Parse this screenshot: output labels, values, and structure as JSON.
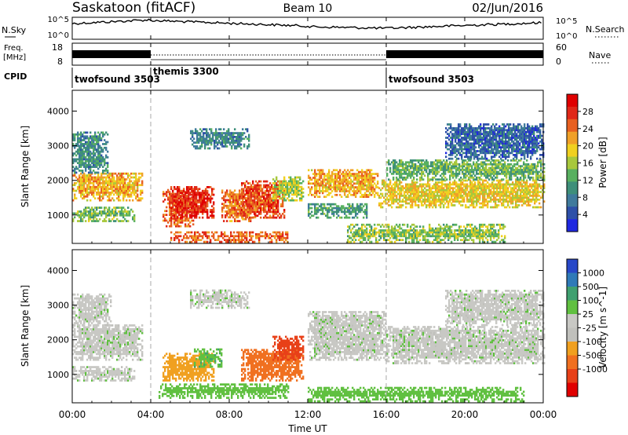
{
  "header": {
    "station": "Saskatoon (fitACF)",
    "beam": "Beam 10",
    "date": "02/Jun/2016"
  },
  "nsky_panel": {
    "left_label": "N.Sky",
    "right_label": "N.Search",
    "left_ticks": [
      "10^5",
      "10^0"
    ],
    "right_ticks": [
      "10^5",
      "10^0"
    ]
  },
  "freq_panel": {
    "left_label_line1": "Freq.",
    "left_label_line2": "[MHz]",
    "right_label": "Nave",
    "left_ticks": [
      "18",
      "8"
    ],
    "right_ticks": [
      "60",
      "0"
    ]
  },
  "cpid_panel": {
    "label": "CPID",
    "modes": [
      {
        "name": "twofsound 3503",
        "start_hour": 0,
        "end_hour": 4
      },
      {
        "name": "themis 3300",
        "start_hour": 4,
        "end_hour": 16
      },
      {
        "name": "twofsound 3503",
        "start_hour": 16,
        "end_hour": 24
      }
    ]
  },
  "time_axis": {
    "label": "Time UT",
    "ticks": [
      "00:00",
      "04:00",
      "08:00",
      "12:00",
      "16:00",
      "20:00",
      "00:00"
    ],
    "tick_hours": [
      0,
      4,
      8,
      12,
      16,
      20,
      24
    ],
    "range_hours": [
      0,
      24
    ],
    "dashed_markers_hours": [
      4,
      16
    ]
  },
  "chart_data": [
    {
      "type": "heatmap",
      "quantity": "Power",
      "ylabel": "Slant Range [km]",
      "colorbar_label": "Power [dB]",
      "yticks": [
        1000,
        2000,
        3000,
        4000
      ],
      "ylim": [
        180,
        4600
      ],
      "colorbar_ticks": [
        4,
        8,
        12,
        16,
        20,
        24,
        28
      ],
      "colorbar_range": [
        0,
        32
      ],
      "colorbar_colors": [
        "#1f28e0",
        "#2d50a8",
        "#3f7a9c",
        "#3e8f7a",
        "#58b060",
        "#a8c83c",
        "#f0d020",
        "#f0a028",
        "#e86020",
        "#e02818",
        "#e00000"
      ],
      "regions": [
        {
          "t0": 0.0,
          "t1": 3.6,
          "r_lo": 1400,
          "r_hi": 2200,
          "val": 21
        },
        {
          "t0": 0.0,
          "t1": 3.2,
          "r_lo": 800,
          "r_hi": 1200,
          "val": 14
        },
        {
          "t0": 0.0,
          "t1": 1.8,
          "r_lo": 2200,
          "r_hi": 3400,
          "val": 9
        },
        {
          "t0": 4.6,
          "t1": 6.2,
          "r_lo": 650,
          "r_hi": 1700,
          "val": 25
        },
        {
          "t0": 5.0,
          "t1": 7.2,
          "r_lo": 900,
          "r_hi": 1800,
          "val": 28
        },
        {
          "t0": 7.6,
          "t1": 9.4,
          "r_lo": 800,
          "r_hi": 1700,
          "val": 24
        },
        {
          "t0": 8.6,
          "t1": 10.8,
          "r_lo": 900,
          "r_hi": 2000,
          "val": 26
        },
        {
          "t0": 10.2,
          "t1": 11.8,
          "r_lo": 1400,
          "r_hi": 2100,
          "val": 16
        },
        {
          "t0": 5.0,
          "t1": 11.0,
          "r_lo": 200,
          "r_hi": 500,
          "val": 25
        },
        {
          "t0": 6.0,
          "t1": 9.0,
          "r_lo": 2900,
          "r_hi": 3500,
          "val": 9
        },
        {
          "t0": 12.0,
          "t1": 15.6,
          "r_lo": 1500,
          "r_hi": 2300,
          "val": 21
        },
        {
          "t0": 12.0,
          "t1": 15.0,
          "r_lo": 900,
          "r_hi": 1300,
          "val": 11
        },
        {
          "t0": 15.6,
          "t1": 24.0,
          "r_lo": 1200,
          "r_hi": 2000,
          "val": 19
        },
        {
          "t0": 16.0,
          "t1": 24.0,
          "r_lo": 2000,
          "r_hi": 2600,
          "val": 13
        },
        {
          "t0": 14.0,
          "t1": 22.0,
          "r_lo": 200,
          "r_hi": 700,
          "val": 15
        },
        {
          "t0": 19.0,
          "t1": 24.0,
          "r_lo": 2600,
          "r_hi": 3600,
          "val": 6
        }
      ]
    },
    {
      "type": "heatmap",
      "quantity": "Velocity",
      "ylabel": "Slant Range [km]",
      "colorbar_label": "Velocity [m s^-1]",
      "yticks": [
        1000,
        2000,
        3000,
        4000
      ],
      "ylim": [
        180,
        4600
      ],
      "colorbar_ticks": [
        "1000",
        "500",
        "100",
        "25",
        "-25",
        "-100",
        "-500",
        "-1000"
      ],
      "colorbar_colors": [
        "#2848c8",
        "#2f7ab8",
        "#3fa070",
        "#60c040",
        "#c8c8c4",
        "#c0c0bc",
        "#f0a020",
        "#f07020",
        "#e84018",
        "#e00000"
      ],
      "regions": [
        {
          "t0": 0.0,
          "t1": 3.6,
          "r_lo": 1400,
          "r_hi": 2400,
          "val": 0
        },
        {
          "t0": 0.0,
          "t1": 3.2,
          "r_lo": 800,
          "r_hi": 1200,
          "val": 0
        },
        {
          "t0": 0.0,
          "t1": 2.0,
          "r_lo": 2400,
          "r_hi": 3300,
          "val": 0
        },
        {
          "t0": 4.6,
          "t1": 7.2,
          "r_lo": 800,
          "r_hi": 1600,
          "val": -250
        },
        {
          "t0": 6.2,
          "t1": 7.6,
          "r_lo": 1200,
          "r_hi": 1700,
          "val": 80
        },
        {
          "t0": 8.6,
          "t1": 11.8,
          "r_lo": 800,
          "r_hi": 1700,
          "val": -350
        },
        {
          "t0": 10.2,
          "t1": 11.8,
          "r_lo": 1400,
          "r_hi": 2100,
          "val": -700
        },
        {
          "t0": 6.0,
          "t1": 9.0,
          "r_lo": 2900,
          "r_hi": 3400,
          "val": 0
        },
        {
          "t0": 4.4,
          "t1": 11.0,
          "r_lo": 300,
          "r_hi": 700,
          "val": 60
        },
        {
          "t0": 12.0,
          "t1": 16.0,
          "r_lo": 1400,
          "r_hi": 2800,
          "val": 0
        },
        {
          "t0": 16.0,
          "t1": 24.0,
          "r_lo": 1300,
          "r_hi": 2400,
          "val": 0
        },
        {
          "t0": 19.0,
          "t1": 24.0,
          "r_lo": 2400,
          "r_hi": 3400,
          "val": 0
        },
        {
          "t0": 12.0,
          "t1": 23.0,
          "r_lo": 200,
          "r_hi": 600,
          "val": 60
        }
      ]
    }
  ]
}
